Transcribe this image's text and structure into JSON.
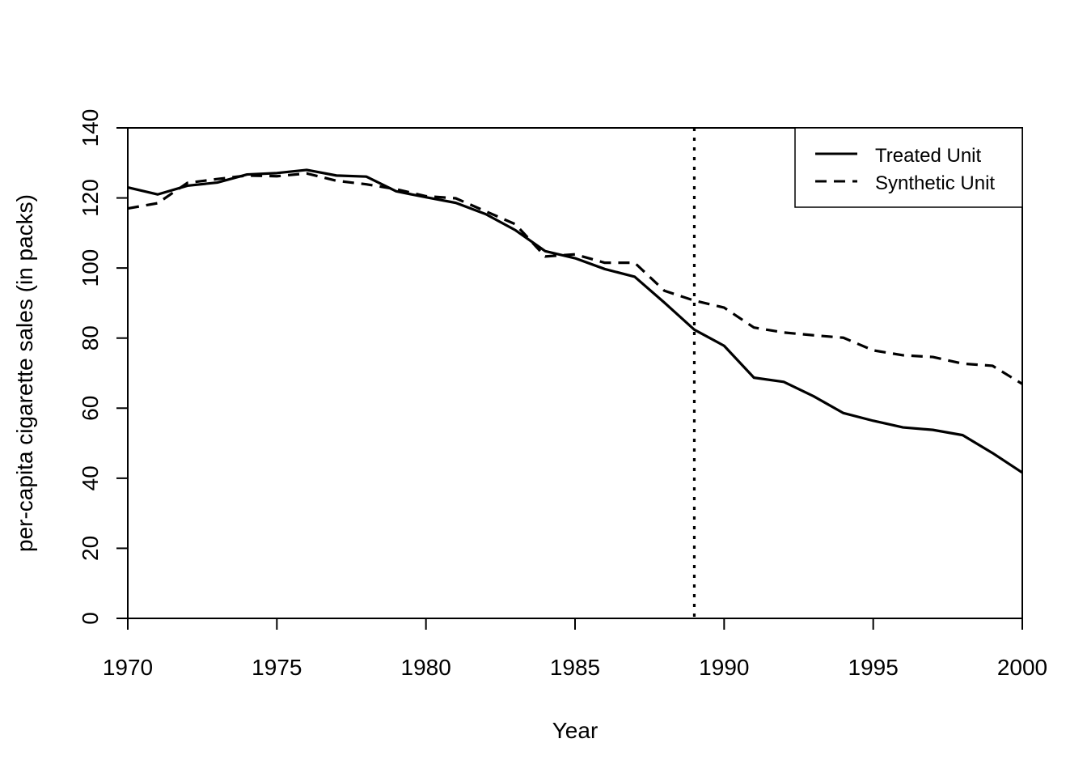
{
  "chart_data": {
    "type": "line",
    "title": "",
    "xlabel": "Year",
    "ylabel": "per-capita cigarette sales (in packs)",
    "xlim": [
      1970,
      2000
    ],
    "ylim": [
      0,
      140
    ],
    "x_ticks": [
      1970,
      1975,
      1980,
      1985,
      1990,
      1995,
      2000
    ],
    "y_ticks": [
      0,
      20,
      40,
      60,
      80,
      100,
      120,
      140
    ],
    "x": [
      1970,
      1971,
      1972,
      1973,
      1974,
      1975,
      1976,
      1977,
      1978,
      1979,
      1980,
      1981,
      1982,
      1983,
      1984,
      1985,
      1986,
      1987,
      1988,
      1989,
      1990,
      1991,
      1992,
      1993,
      1994,
      1995,
      1996,
      1997,
      1998,
      1999,
      2000
    ],
    "series": [
      {
        "name": "Treated Unit",
        "style": "solid",
        "values": [
          123.0,
          121.0,
          123.5,
          124.4,
          126.7,
          127.1,
          128.0,
          126.4,
          126.1,
          121.9,
          120.2,
          118.6,
          115.4,
          110.8,
          104.8,
          102.8,
          99.7,
          97.5,
          90.1,
          82.4,
          77.8,
          68.7,
          67.5,
          63.4,
          58.6,
          56.4,
          54.5,
          53.8,
          52.3,
          47.2,
          41.6
        ]
      },
      {
        "name": "Synthetic Unit",
        "style": "dashed",
        "values": [
          117.0,
          118.5,
          124.3,
          125.4,
          126.4,
          126.2,
          127.0,
          124.9,
          123.9,
          122.5,
          120.5,
          119.9,
          116.2,
          112.5,
          103.3,
          103.9,
          101.5,
          101.5,
          93.5,
          90.7,
          88.7,
          83.0,
          81.6,
          80.8,
          80.1,
          76.5,
          75.1,
          74.6,
          72.7,
          72.1,
          66.9
        ]
      }
    ],
    "annotations": [
      {
        "type": "vline",
        "x": 1989,
        "style": "dotted"
      }
    ],
    "legend": {
      "position": "top-right",
      "entries": [
        "Treated Unit",
        "Synthetic Unit"
      ]
    },
    "grid": false,
    "colors": {
      "line": "#000000",
      "background": "#ffffff"
    }
  }
}
